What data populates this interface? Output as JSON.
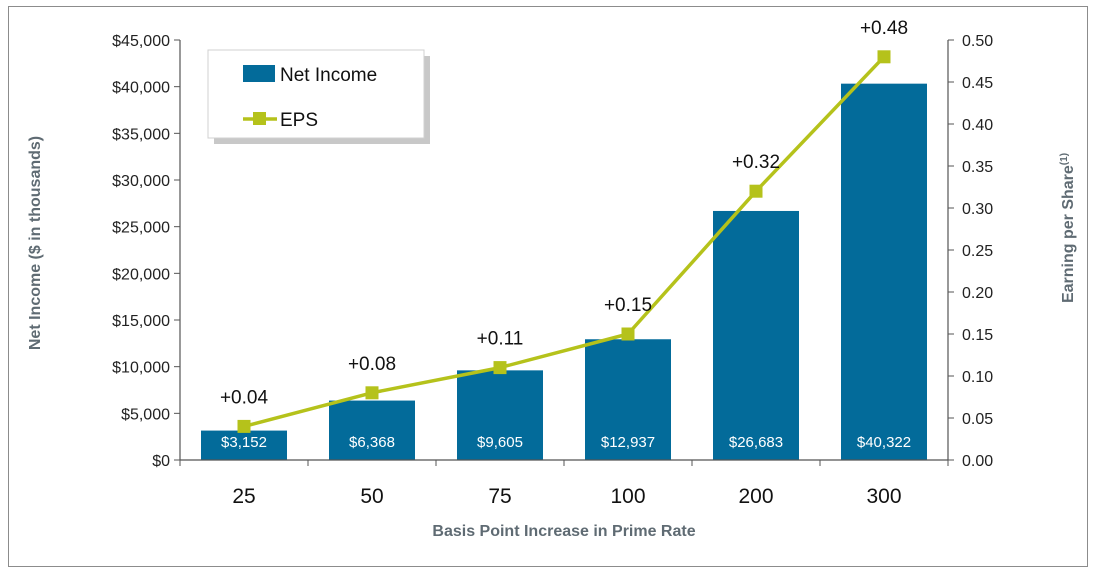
{
  "colors": {
    "bar": "#036b9a",
    "eps_line": "#b5c21b",
    "axis": "#555555"
  },
  "chart_data": {
    "type": "bar",
    "categories": [
      "25",
      "50",
      "75",
      "100",
      "200",
      "300"
    ],
    "series": [
      {
        "name": "Net Income",
        "type": "bar",
        "axis": "left",
        "values": [
          3152,
          6368,
          9605,
          12937,
          26683,
          40322
        ],
        "labels": [
          "$3,152",
          "$6,368",
          "$9,605",
          "$12,937",
          "$26,683",
          "$40,322"
        ]
      },
      {
        "name": "EPS",
        "type": "line",
        "axis": "right",
        "values": [
          0.04,
          0.08,
          0.11,
          0.15,
          0.32,
          0.48
        ],
        "labels": [
          "+0.04",
          "+0.08",
          "+0.11",
          "+0.15",
          "+0.32",
          "+0.48"
        ]
      }
    ],
    "xlabel": "Basis Point Increase in Prime Rate",
    "ylabel": "Net Income ($ in thousands)",
    "y2label": "Earning per Share",
    "y2label_sup": "(1)",
    "ylim": [
      0,
      45000
    ],
    "y2lim": [
      0,
      0.5
    ],
    "yticks": [
      "$0",
      "$5,000",
      "$10,000",
      "$15,000",
      "$20,000",
      "$25,000",
      "$30,000",
      "$35,000",
      "$40,000",
      "$45,000"
    ],
    "y2ticks": [
      "0.00",
      "0.05",
      "0.10",
      "0.15",
      "0.20",
      "0.25",
      "0.30",
      "0.35",
      "0.40",
      "0.45",
      "0.50"
    ],
    "grid": false,
    "legend_position": "top-left"
  }
}
